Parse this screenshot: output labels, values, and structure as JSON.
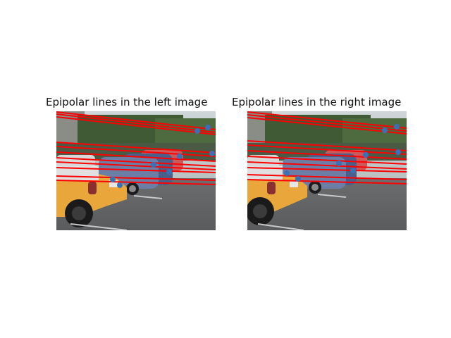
{
  "figure": {
    "panels": [
      {
        "title": "Epipolar lines in the left image",
        "side": "left"
      },
      {
        "title": "Epipolar lines in the right image",
        "side": "right"
      }
    ],
    "colors": {
      "epipolar_line": "#ff0000",
      "keypoint": "#3b6fb6",
      "background": "#ffffff"
    },
    "scene": "stereo photo pair of a parking lot with a yellow car in the foreground"
  }
}
